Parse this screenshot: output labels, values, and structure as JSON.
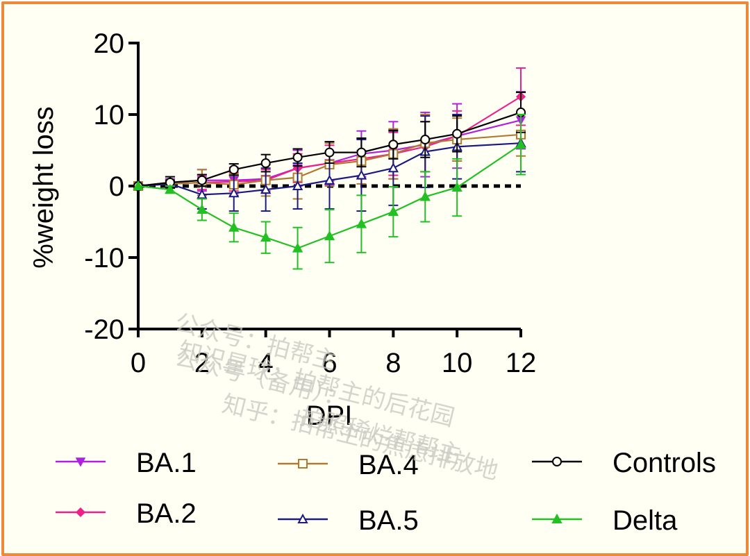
{
  "chart_data": {
    "type": "line",
    "xlabel": "DPI",
    "ylabel": "%weight loss",
    "xlim": [
      0,
      12
    ],
    "ylim": [
      -20,
      20
    ],
    "x_ticks": [
      "0",
      "2",
      "4",
      "6",
      "8",
      "10",
      "12"
    ],
    "y_ticks": [
      "20",
      "10",
      "0",
      "-10",
      "-20"
    ],
    "grid": false,
    "legend_position": "bottom",
    "reference_line": {
      "y": 0,
      "style": "dashed"
    },
    "x": [
      0,
      1,
      2,
      3,
      4,
      5,
      6,
      7,
      8,
      9,
      10,
      12
    ],
    "series": [
      {
        "name": "BA.1",
        "color": "#b020e0",
        "marker": "triangle-down-filled",
        "values": [
          0,
          0.5,
          0.8,
          0.8,
          1.0,
          2.5,
          3.2,
          4.5,
          5.0,
          5.8,
          7.0,
          9.2
        ],
        "errors": [
          0,
          0.5,
          1.5,
          1.8,
          2.0,
          2.5,
          3.0,
          3.2,
          4.0,
          4.5,
          4.5,
          4.0
        ]
      },
      {
        "name": "BA.2",
        "color": "#f0208a",
        "marker": "diamond-filled",
        "values": [
          0,
          0.3,
          0.5,
          0.6,
          0.8,
          2.5,
          3.2,
          3.8,
          4.5,
          5.5,
          7.0,
          12.5
        ],
        "errors": [
          0,
          0.5,
          1.0,
          1.3,
          1.5,
          2.0,
          2.5,
          2.8,
          3.0,
          3.5,
          3.5,
          4.0
        ]
      },
      {
        "name": "BA.4",
        "color": "#b07a30",
        "marker": "square-open",
        "values": [
          0,
          0.3,
          0.5,
          0.2,
          0.8,
          1.2,
          3.0,
          3.5,
          4.5,
          6.0,
          6.5,
          7.2
        ],
        "errors": [
          0,
          0.5,
          1.8,
          1.5,
          2.2,
          3.0,
          3.0,
          3.2,
          3.5,
          4.0,
          3.0,
          3.0
        ]
      },
      {
        "name": "BA.5",
        "color": "#1a1a80",
        "marker": "triangle-open",
        "values": [
          0,
          0.3,
          -1.2,
          -1.0,
          -0.5,
          0,
          0.8,
          1.5,
          2.5,
          4.8,
          5.5,
          6.0
        ],
        "errors": [
          0,
          0.5,
          2.0,
          2.5,
          3.0,
          3.2,
          4.0,
          5.0,
          5.2,
          5.0,
          4.5,
          4.0
        ]
      },
      {
        "name": "Controls",
        "color": "#000000",
        "marker": "circle-open",
        "values": [
          0,
          0.5,
          0.8,
          2.3,
          3.2,
          4.0,
          4.7,
          4.7,
          5.8,
          6.5,
          7.3,
          10.3
        ],
        "errors": [
          0,
          0.8,
          0.8,
          0.8,
          1.2,
          1.2,
          1.5,
          2.0,
          2.0,
          2.5,
          2.5,
          2.8
        ]
      },
      {
        "name": "Delta",
        "color": "#22c022",
        "marker": "triangle-up-filled",
        "values": [
          0,
          -0.5,
          -3.3,
          -5.8,
          -7.2,
          -8.7,
          -7.0,
          -5.3,
          -3.6,
          -1.5,
          -0.2,
          5.8
        ],
        "errors": [
          0,
          0.5,
          1.5,
          2.0,
          2.2,
          2.9,
          3.7,
          4.0,
          3.5,
          3.5,
          4.0,
          4.2
        ]
      }
    ]
  },
  "watermark": [
    "公众号：拍帮主",
    "公众号（备用）：",
    "知识星球：拍帮主的后花园",
    "知乎：拍帮主的焦虑排放地",
    "拍照稀烂帮帮主"
  ]
}
